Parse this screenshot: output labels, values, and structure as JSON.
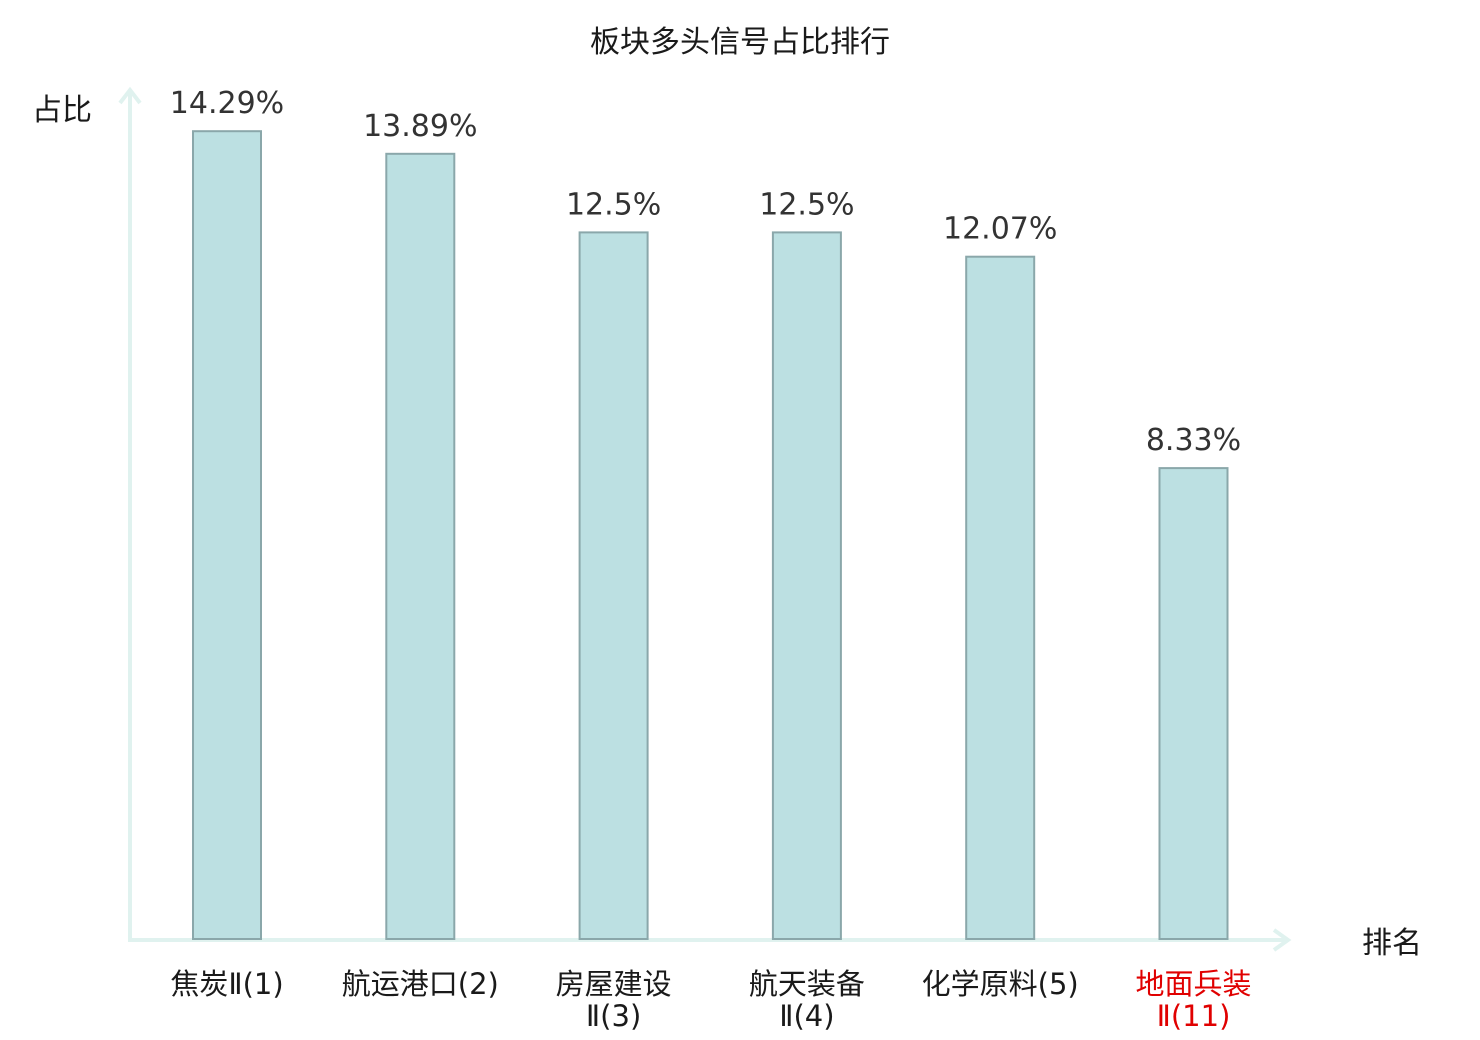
{
  "chart_data": {
    "type": "bar",
    "title": "板块多头信号占比排行",
    "ylabel": "占比",
    "xlabel": "排名",
    "categories": [
      {
        "lines": [
          "焦炭Ⅱ(1)"
        ],
        "highlight": false
      },
      {
        "lines": [
          "航运港口(2)"
        ],
        "highlight": false
      },
      {
        "lines": [
          "房屋建设",
          "Ⅱ(3)"
        ],
        "highlight": false
      },
      {
        "lines": [
          "航天装备",
          "Ⅱ(4)"
        ],
        "highlight": false
      },
      {
        "lines": [
          "化学原料(5)"
        ],
        "highlight": false
      },
      {
        "lines": [
          "地面兵装",
          "Ⅱ(11)"
        ],
        "highlight": true
      }
    ],
    "values": [
      14.29,
      13.89,
      12.5,
      12.5,
      12.07,
      8.33
    ],
    "value_labels": [
      "14.29%",
      "13.89%",
      "12.5%",
      "12.5%",
      "12.07%",
      "8.33%"
    ],
    "ylim": [
      0,
      14.7
    ],
    "grid": false,
    "colors": {
      "bar_fill": "#bce0e2",
      "bar_stroke": "#8aa7aa",
      "axis": "#e0f2ef",
      "text": "#1a1a1a",
      "value_text": "#333333",
      "highlight_text": "#e00000"
    }
  }
}
